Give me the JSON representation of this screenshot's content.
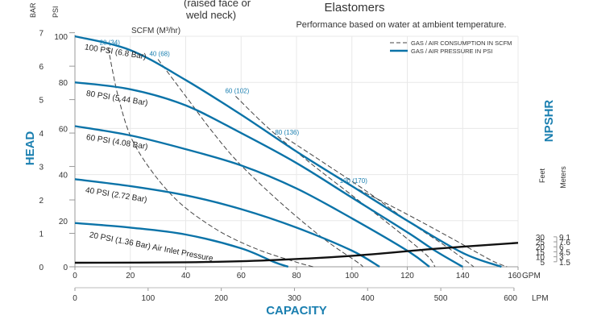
{
  "header": {
    "partial_title_line1": "(raised face or",
    "partial_title_line2": "weld neck)",
    "elastomers": "Elastomers",
    "subtitle": "Performance based on water at ambient temperature."
  },
  "colors": {
    "blue": "#0b73a8",
    "blue_text": "#1a7fb0",
    "npshr": "#111111",
    "grid": "#e8e8e8",
    "text": "#333333"
  },
  "chart_data": {
    "type": "line",
    "title": "",
    "xlabel": "CAPACITY",
    "ylabel": "HEAD",
    "right_label": "NPSHR",
    "x_units_top": "GPM",
    "x_units_bottom": "LPM",
    "xlim_gpm": [
      0,
      160
    ],
    "ylim_psi": [
      0,
      100
    ],
    "gpm_ticks": [
      "0",
      "20",
      "40",
      "60",
      "80",
      "100",
      "120",
      "140",
      "160"
    ],
    "lpm_ticks": [
      "0",
      "100",
      "200",
      "300",
      "400",
      "500",
      "600"
    ],
    "psi_ticks": [
      "0",
      "20",
      "40",
      "60",
      "80",
      "100"
    ],
    "bar_ticks": [
      "0",
      "1",
      "2",
      "3",
      "4",
      "5",
      "6",
      "7"
    ],
    "left_unit_bar": "BAR",
    "left_unit_psi": "PSI",
    "scfm_label": "SCFM (M³/hr)",
    "npshr_units": {
      "feet": "Feet",
      "meters": "Meters"
    },
    "npshr_feet_ticks": [
      "5",
      "10",
      "15",
      "20",
      "25",
      "30"
    ],
    "npshr_meter_ticks": [
      "1.5",
      "3",
      "4.5",
      "6",
      "7.6",
      "9.1"
    ],
    "npshr_range_ft": [
      0,
      30
    ],
    "legend": {
      "placement": "top-right",
      "items": [
        {
          "label": "GAS / AIR CONSUMPTION IN SCFM",
          "style": "dashed"
        },
        {
          "label": "GAS / AIR PRESSURE IN PSI",
          "style": "solid"
        }
      ]
    },
    "pressure_curves": [
      {
        "label": "100 PSI (6.8 Bar)",
        "points": [
          [
            0,
            100
          ],
          [
            20,
            94
          ],
          [
            40,
            81
          ],
          [
            60,
            66
          ],
          [
            80,
            50
          ],
          [
            100,
            35
          ],
          [
            120,
            20
          ],
          [
            140,
            6
          ],
          [
            154,
            0
          ]
        ]
      },
      {
        "label": "80 PSI (5.44 Bar)",
        "points": [
          [
            0,
            80
          ],
          [
            20,
            77
          ],
          [
            40,
            70
          ],
          [
            60,
            58
          ],
          [
            80,
            45
          ],
          [
            100,
            30
          ],
          [
            120,
            15
          ],
          [
            130,
            7
          ],
          [
            140,
            0
          ]
        ]
      },
      {
        "label": "60 PSI (4.08 Bar)",
        "points": [
          [
            0,
            61
          ],
          [
            20,
            57
          ],
          [
            40,
            51
          ],
          [
            60,
            44
          ],
          [
            80,
            34
          ],
          [
            100,
            21
          ],
          [
            120,
            7
          ],
          [
            128,
            0
          ]
        ]
      },
      {
        "label": "40 PSI (2.72 Bar)",
        "points": [
          [
            0,
            38
          ],
          [
            20,
            35
          ],
          [
            40,
            31
          ],
          [
            60,
            25
          ],
          [
            80,
            17
          ],
          [
            100,
            7
          ],
          [
            110,
            0
          ]
        ]
      },
      {
        "label": "20 PSI (1.36 Bar) Air Inlet Pressure",
        "points": [
          [
            0,
            19
          ],
          [
            20,
            17
          ],
          [
            40,
            14
          ],
          [
            60,
            8
          ],
          [
            72,
            2
          ],
          [
            77,
            0
          ]
        ]
      }
    ],
    "scfm_curves": [
      {
        "label": "20 (34)",
        "points": [
          [
            12,
            95
          ],
          [
            16,
            72
          ],
          [
            22,
            52
          ],
          [
            35,
            31
          ],
          [
            50,
            17
          ],
          [
            65,
            8
          ],
          [
            80,
            2
          ],
          [
            86,
            0
          ]
        ]
      },
      {
        "label": "40 (68)",
        "points": [
          [
            30,
            90
          ],
          [
            40,
            74
          ],
          [
            50,
            58
          ],
          [
            60,
            44
          ],
          [
            75,
            27
          ],
          [
            90,
            12
          ],
          [
            102,
            2
          ],
          [
            104,
            0
          ]
        ]
      },
      {
        "label": "60 (102)",
        "points": [
          [
            58,
            74
          ],
          [
            70,
            60
          ],
          [
            85,
            45
          ],
          [
            100,
            31
          ],
          [
            115,
            17
          ],
          [
            127,
            5
          ],
          [
            130,
            0
          ]
        ]
      },
      {
        "label": "80 (136)",
        "points": [
          [
            76,
            56
          ],
          [
            90,
            45
          ],
          [
            105,
            33
          ],
          [
            120,
            20
          ],
          [
            135,
            8
          ],
          [
            144,
            0
          ]
        ]
      },
      {
        "label": "100 (170)",
        "points": [
          [
            100,
            35
          ],
          [
            118,
            24
          ],
          [
            135,
            13
          ],
          [
            150,
            3
          ],
          [
            156,
            0
          ]
        ]
      }
    ],
    "npshr_curve": [
      [
        0,
        4
      ],
      [
        40,
        4.5
      ],
      [
        70,
        6.5
      ],
      [
        100,
        11
      ],
      [
        130,
        18
      ],
      [
        160,
        24
      ]
    ]
  }
}
